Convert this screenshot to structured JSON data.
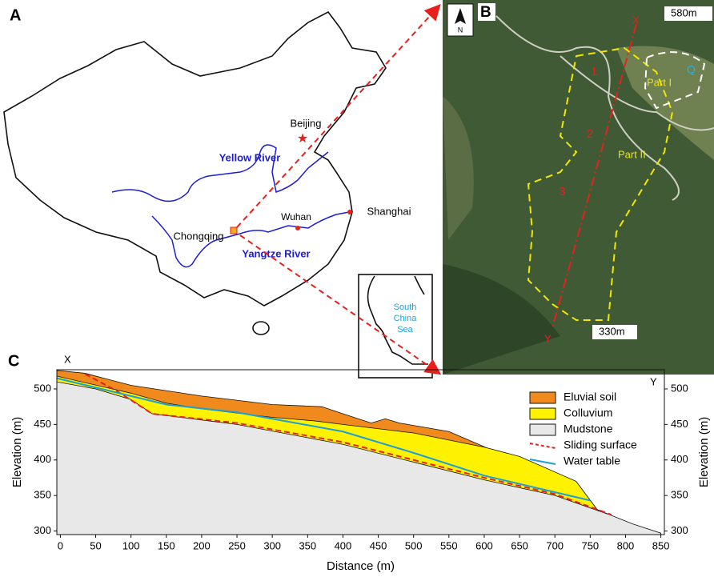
{
  "panel_labels": [
    "A",
    "B",
    "C"
  ],
  "map": {
    "cities": [
      "Beijing",
      "Chongqing",
      "Wuhan",
      "Shanghai"
    ],
    "rivers": [
      "Yellow River",
      "Yangtze River"
    ],
    "sea": [
      "South",
      "China",
      "Sea"
    ]
  },
  "satellite": {
    "compass": "N",
    "top_elevation": "580m",
    "bottom_elevation": "330m",
    "profile_ends": [
      "X",
      "Y"
    ],
    "zones": [
      "1",
      "2",
      "3"
    ],
    "parts": [
      "Part I",
      "Part II"
    ],
    "marker": "Q"
  },
  "chart_data": {
    "type": "area",
    "profile_ends": [
      "X",
      "Y"
    ],
    "xlabel": "Distance (m)",
    "ylabel": "Elevation (m)",
    "y2label": "Elevation (m)",
    "xlim": [
      -5,
      855
    ],
    "ylim": [
      295,
      527
    ],
    "y2lim": [
      295,
      527
    ],
    "xticks": [
      0,
      50,
      100,
      150,
      200,
      250,
      300,
      350,
      400,
      450,
      500,
      550,
      600,
      650,
      700,
      750,
      800,
      850
    ],
    "yticks": [
      300,
      350,
      400,
      450,
      500
    ],
    "y2ticks": [
      300,
      350,
      400,
      450,
      500
    ],
    "series": [
      {
        "name": "Eluvial soil",
        "kind": "area",
        "color": "#f08a1c",
        "x": [
          -5,
          35,
          100,
          200,
          300,
          370,
          400,
          440,
          460,
          480,
          550,
          620,
          730,
          760,
          780
        ],
        "values": [
          526,
          522,
          505,
          490,
          478,
          475,
          465,
          452,
          458,
          452,
          440,
          410,
          370,
          330,
          322
        ]
      },
      {
        "name": "Colluvium",
        "kind": "area",
        "color": "#fff200",
        "x": [
          -5,
          100,
          150,
          200,
          300,
          360,
          400,
          500,
          600,
          650,
          730,
          760,
          780
        ],
        "values": [
          518,
          494,
          480,
          472,
          460,
          455,
          450,
          438,
          418,
          405,
          370,
          330,
          322
        ]
      },
      {
        "name": "Mudstone",
        "kind": "area",
        "color": "#e8e8e8",
        "x": [
          -5,
          50,
          100,
          130,
          250,
          400,
          500,
          600,
          700,
          780,
          810,
          850
        ],
        "values": [
          510,
          500,
          485,
          465,
          450,
          422,
          397,
          372,
          350,
          322,
          310,
          297
        ]
      },
      {
        "name": "Sliding surface",
        "kind": "line",
        "dash": true,
        "color": "#e8201c",
        "x": [
          35,
          80,
          130,
          250,
          400,
          500,
          600,
          700,
          780
        ],
        "values": [
          521,
          497,
          465,
          452,
          425,
          400,
          375,
          352,
          323
        ]
      },
      {
        "name": "Water table",
        "kind": "line",
        "dash": false,
        "color": "#1a9fd8",
        "x": [
          -5,
          100,
          150,
          250,
          300,
          400,
          500,
          600,
          750
        ],
        "values": [
          515,
          490,
          478,
          467,
          458,
          440,
          410,
          378,
          343
        ]
      }
    ]
  }
}
